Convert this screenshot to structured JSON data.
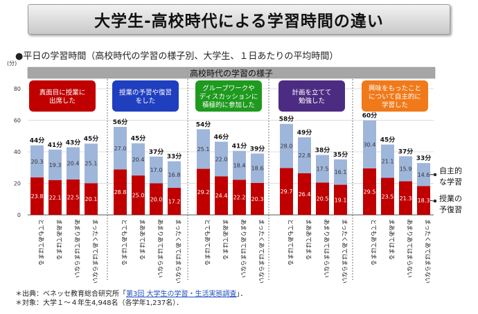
{
  "title": "大学生-高校時代による学習時間の違い",
  "subtitle": "●平日の学習時間（高校時代の学習の様子別、大学生、１日あたりの平均時間）",
  "chart_data": {
    "type": "bar",
    "stacked": true,
    "unit_label": "(分)",
    "ylim": [
      0,
      80
    ],
    "yticks": [
      "0",
      "20",
      "40",
      "60",
      "80"
    ],
    "group_header": "高校時代の学習の様子",
    "response_labels": [
      "とてもあてはまる",
      "まああてはまる",
      "あまりあてはまらない",
      "まったくあてはまらない"
    ],
    "series": [
      {
        "name": "授業の予復習",
        "color": "#c00000"
      },
      {
        "name": "自主的な学習",
        "color": "#9fb6db"
      }
    ],
    "legend_labels": [
      [
        "自主的",
        "な学習"
      ],
      [
        "授業の",
        "予復習"
      ]
    ],
    "groups": [
      {
        "label": "真面目に授業に出席した",
        "label_lines": [
          "真面目に授業に",
          "出席した"
        ],
        "color": "#c00000",
        "bars": [
          {
            "bottom": 23.8,
            "top": 20.3,
            "total": "44分",
            "bottom_label": "23.8",
            "top_label": "20.3"
          },
          {
            "bottom": 22.1,
            "top": 19.3,
            "total": "41分",
            "bottom_label": "22.1",
            "top_label": "19.3"
          },
          {
            "bottom": 22.5,
            "top": 20.4,
            "total": "43分",
            "bottom_label": "22.5",
            "top_label": "20.4"
          },
          {
            "bottom": 20.1,
            "top": 25.1,
            "total": "45分",
            "bottom_label": "20.1",
            "top_label": "25.1"
          }
        ]
      },
      {
        "label": "授業の予習や復習をした",
        "label_lines": [
          "授業の予習や復習",
          "をした"
        ],
        "color": "#1f3fbf",
        "bars": [
          {
            "bottom": 28.8,
            "top": 27.0,
            "total": "56分",
            "bottom_label": "28.8",
            "top_label": "27.0"
          },
          {
            "bottom": 25.0,
            "top": 20.4,
            "total": "45分",
            "bottom_label": "25.0",
            "top_label": "20.4"
          },
          {
            "bottom": 20.0,
            "top": 17.0,
            "total": "37分",
            "bottom_label": "20.0",
            "top_label": "17.0"
          },
          {
            "bottom": 17.2,
            "top": 16.8,
            "total": "33分",
            "bottom_label": "17.2",
            "top_label": "16.8"
          }
        ]
      },
      {
        "label": "グループワークやディスカッションに積極的に参加した",
        "label_lines": [
          "グループワークや",
          "ディスカッションに",
          "積極的に参加した"
        ],
        "color": "#1e9a1e",
        "bars": [
          {
            "bottom": 29.2,
            "top": 25.1,
            "total": "54分",
            "bottom_label": "29.2",
            "top_label": "25.1"
          },
          {
            "bottom": 24.4,
            "top": 22.0,
            "total": "46分",
            "bottom_label": "24.4",
            "top_label": "22.0"
          },
          {
            "bottom": 22.2,
            "top": 18.4,
            "total": "41分",
            "bottom_label": "22.2",
            "top_label": "18.4"
          },
          {
            "bottom": 20.3,
            "top": 18.6,
            "total": "39分",
            "bottom_label": "20.3",
            "top_label": "18.6"
          }
        ]
      },
      {
        "label": "計画を立てて勉強した",
        "label_lines": [
          "計画を立てて",
          "勉強した"
        ],
        "color": "#4c2c82",
        "bars": [
          {
            "bottom": 29.7,
            "top": 28.0,
            "total": "58分",
            "bottom_label": "29.7",
            "top_label": "28.0"
          },
          {
            "bottom": 26.4,
            "top": 22.8,
            "total": "49分",
            "bottom_label": "26.4",
            "top_label": "22.8"
          },
          {
            "bottom": 20.5,
            "top": 17.5,
            "total": "38分",
            "bottom_label": "20.5",
            "top_label": "17.5"
          },
          {
            "bottom": 19.1,
            "top": 16.1,
            "total": "35分",
            "bottom_label": "19.1",
            "top_label": "16.1"
          }
        ]
      },
      {
        "label": "興味をもったことについて自主的に学習した",
        "label_lines": [
          "興味をもったこと",
          "について自主的に",
          "学習した"
        ],
        "color": "#f07a1a",
        "bars": [
          {
            "bottom": 29.5,
            "top": 30.4,
            "total": "60分",
            "bottom_label": "29.5",
            "top_label": "30.4"
          },
          {
            "bottom": 23.5,
            "top": 21.1,
            "total": "45分",
            "bottom_label": "23.5",
            "top_label": "21.1"
          },
          {
            "bottom": 21.3,
            "top": 15.9,
            "total": "37分",
            "bottom_label": "21.3",
            "top_label": "15.9"
          },
          {
            "bottom": 18.3,
            "top": 14.6,
            "total": "33分",
            "bottom_label": "18.3",
            "top_label": "14.6"
          }
        ]
      }
    ]
  },
  "footer": {
    "source_prefix": "＊出典：ベネッセ教育総合研究所「",
    "source_link": "第3回 大学生の学習・生活実態調査",
    "source_suffix": "」．",
    "target": "＊対象：大学１～４年生4,948名（各学年1,237名）．"
  }
}
